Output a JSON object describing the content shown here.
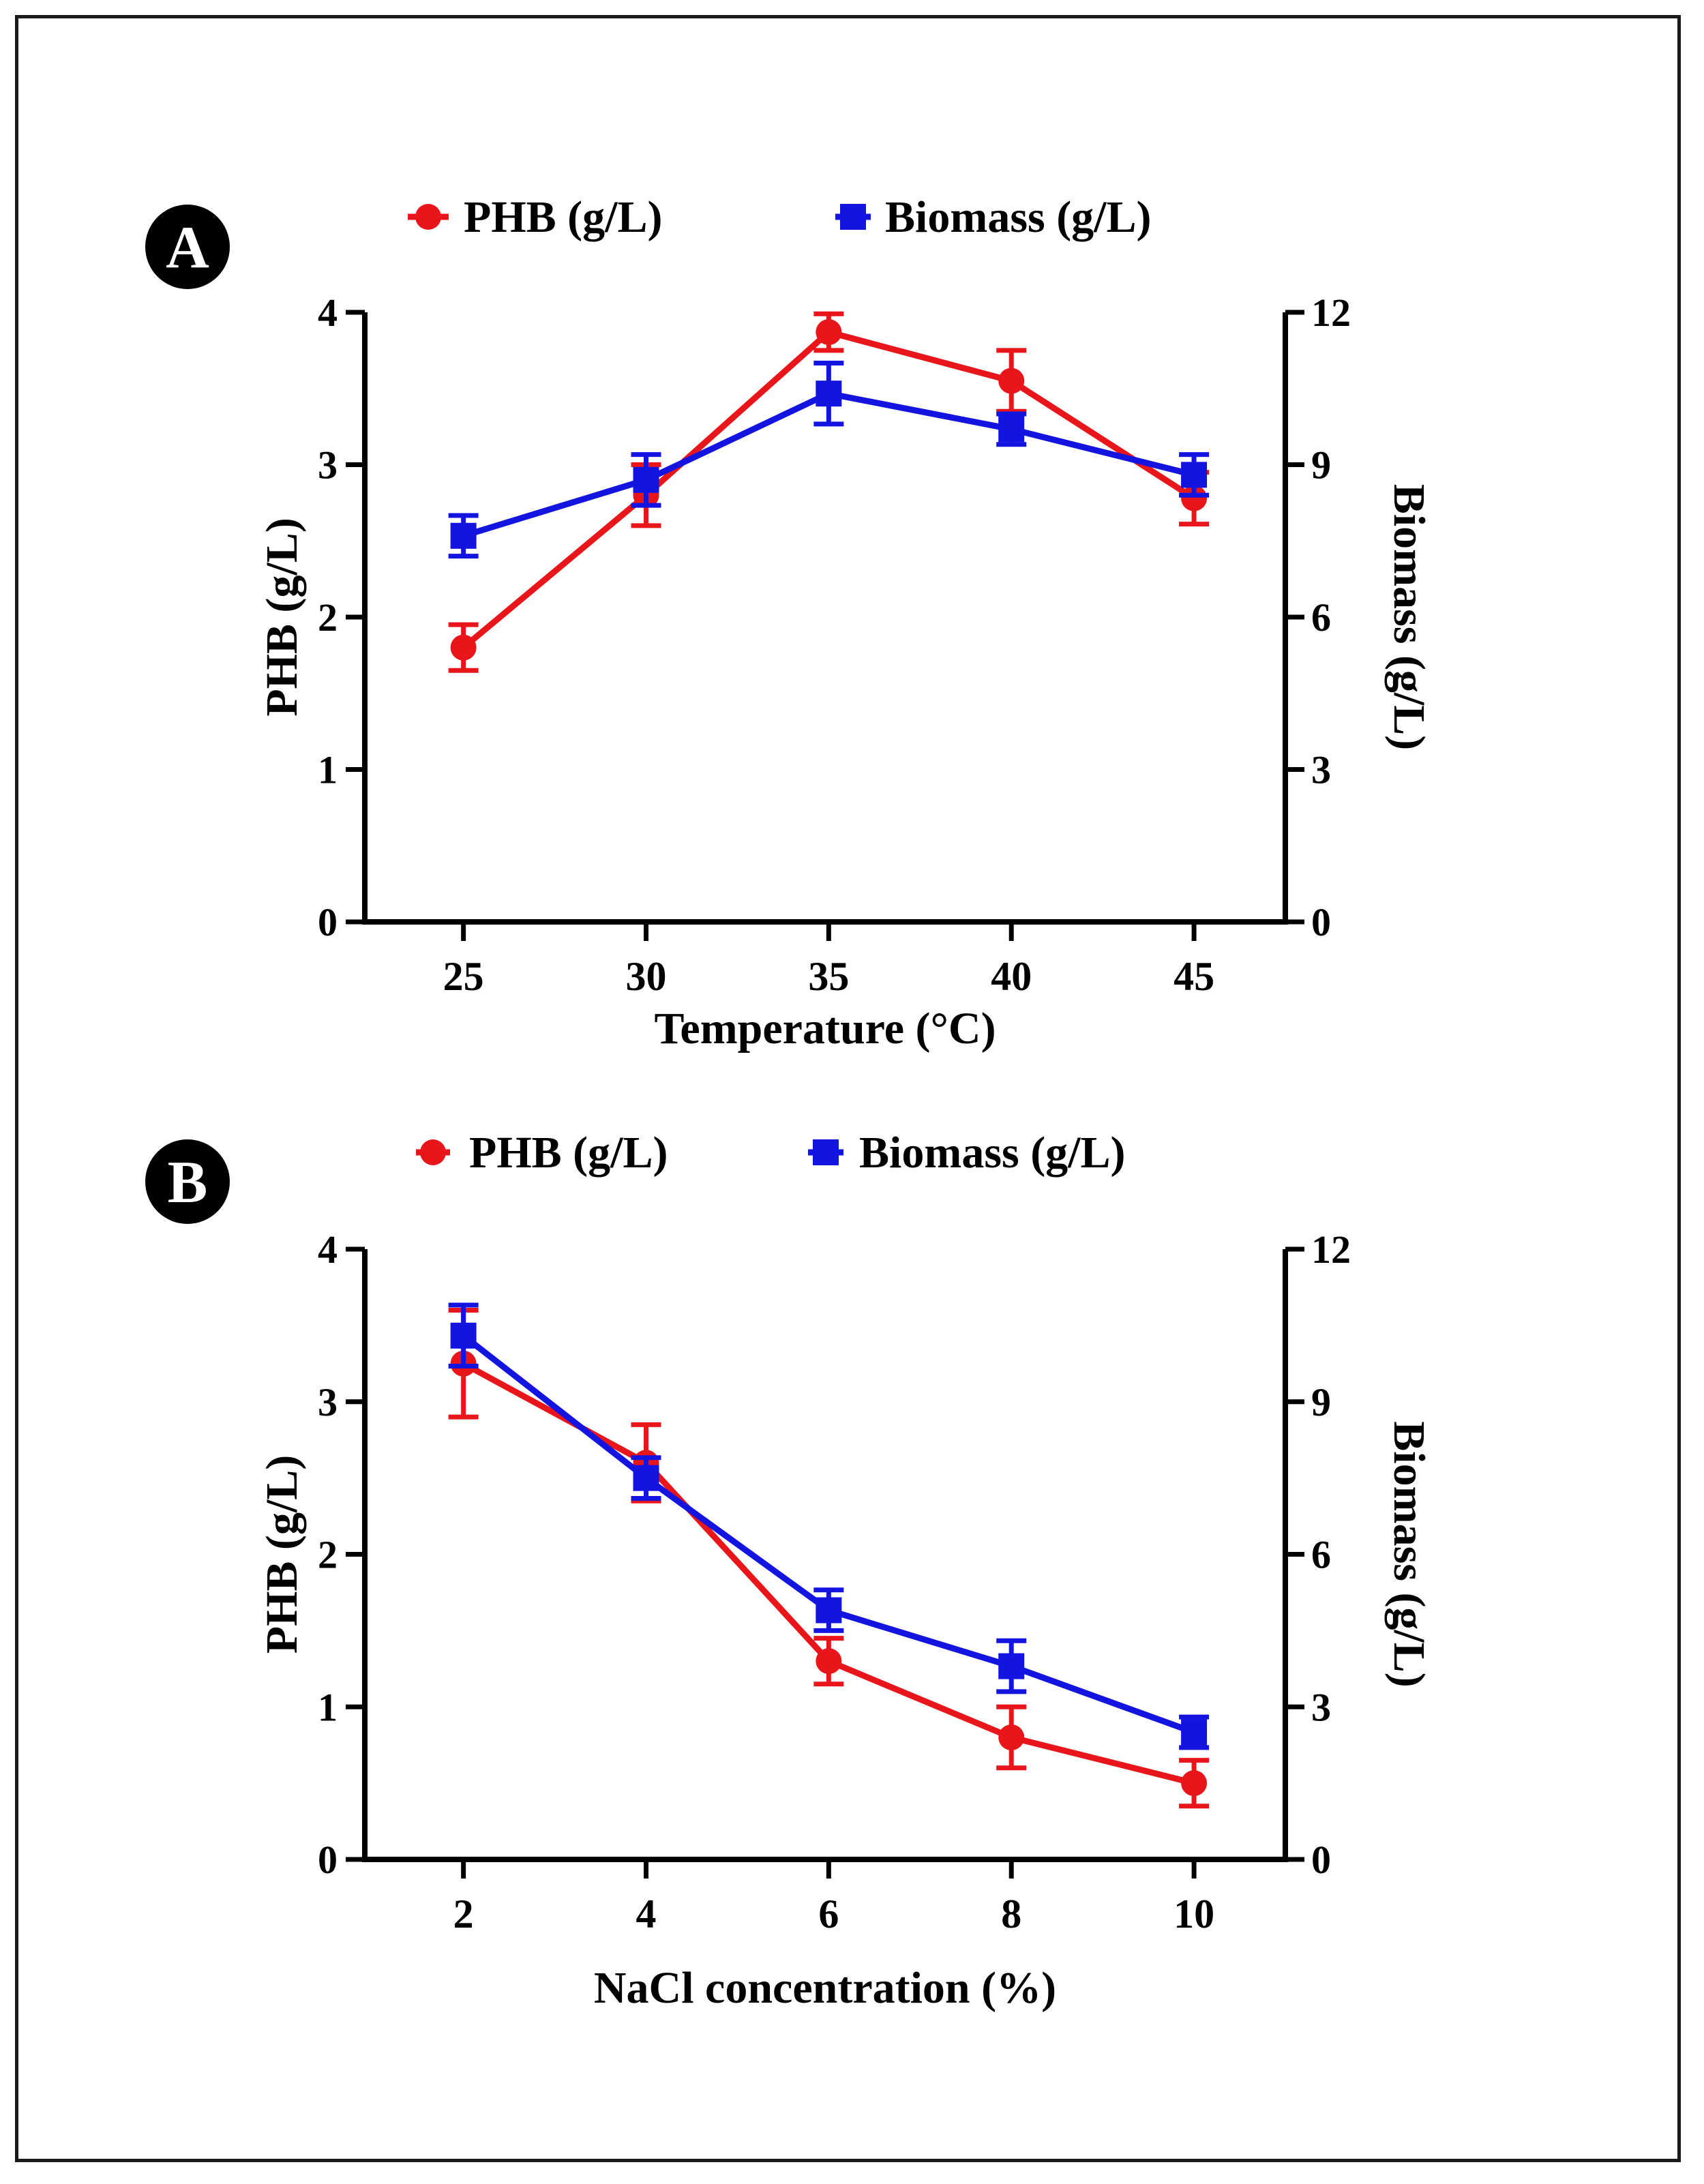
{
  "chart_data": [
    {
      "type": "line",
      "panel_label": "A",
      "xlabel": "Temperature (°C)",
      "ylabel": "PHB (g/L)",
      "y2label": "Biomass (g/L)",
      "categories": [
        "25",
        "30",
        "35",
        "40",
        "45"
      ],
      "x": [
        25,
        30,
        35,
        40,
        45
      ],
      "xlim": [
        22.3,
        47.5
      ],
      "ylim": [
        0,
        4
      ],
      "y2lim": [
        0,
        12
      ],
      "yticks": [
        "0",
        "1",
        "2",
        "3",
        "4"
      ],
      "y2ticks": [
        "0",
        "3",
        "6",
        "9",
        "12"
      ],
      "legend_position": "top",
      "series": [
        {
          "name": "PHB (g/L)",
          "axis": "left",
          "color": "#e8161b",
          "marker": "circle",
          "values": [
            1.8,
            2.8,
            3.87,
            3.55,
            2.78
          ],
          "errors": [
            0.15,
            0.2,
            0.12,
            0.2,
            0.17
          ]
        },
        {
          "name": "Biomass (g/L)",
          "axis": "right",
          "color": "#1414e0",
          "marker": "square",
          "values": [
            7.6,
            8.7,
            10.4,
            9.7,
            8.8
          ],
          "errors": [
            0.4,
            0.5,
            0.6,
            0.3,
            0.4
          ]
        }
      ]
    },
    {
      "type": "line",
      "panel_label": "B",
      "xlabel": "NaCl concentration (%)",
      "ylabel": "PHB (g/L)",
      "y2label": "Biomass (g/L)",
      "categories": [
        "2",
        "4",
        "6",
        "8",
        "10"
      ],
      "x": [
        2,
        4,
        6,
        8,
        10
      ],
      "xlim": [
        0.92,
        11
      ],
      "ylim": [
        0,
        4
      ],
      "y2lim": [
        0,
        12
      ],
      "yticks": [
        "0",
        "1",
        "2",
        "3",
        "4"
      ],
      "y2ticks": [
        "0",
        "3",
        "6",
        "9",
        "12"
      ],
      "legend_position": "top",
      "series": [
        {
          "name": "PHB (g/L)",
          "axis": "left",
          "color": "#e8161b",
          "marker": "circle",
          "values": [
            3.25,
            2.6,
            1.3,
            0.8,
            0.5
          ],
          "errors": [
            0.35,
            0.25,
            0.15,
            0.2,
            0.15
          ]
        },
        {
          "name": "Biomass (g/L)",
          "axis": "right",
          "color": "#1414e0",
          "marker": "square",
          "values": [
            10.3,
            7.5,
            4.9,
            3.8,
            2.5
          ],
          "errors": [
            0.6,
            0.4,
            0.4,
            0.5,
            0.3
          ]
        }
      ]
    }
  ]
}
